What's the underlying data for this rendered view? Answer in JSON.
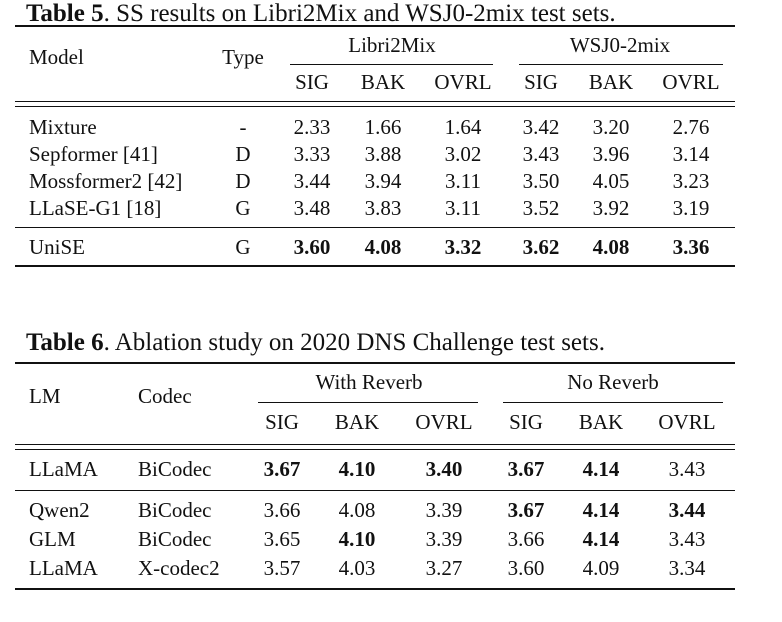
{
  "table5": {
    "label": "Table 5",
    "caption": ". SS results on Libri2Mix and WSJ0-2mix test sets.",
    "headers": {
      "model": "Model",
      "type": "Type",
      "group1": "Libri2Mix",
      "group2": "WSJ0-2mix",
      "metrics": [
        "SIG",
        "BAK",
        "OVRL",
        "SIG",
        "BAK",
        "OVRL"
      ]
    },
    "rows": [
      {
        "model": "Mixture",
        "type": "-",
        "values": [
          "2.33",
          "1.66",
          "1.64",
          "3.42",
          "3.20",
          "2.76"
        ]
      },
      {
        "model": "Sepformer [41]",
        "type": "D",
        "values": [
          "3.33",
          "3.88",
          "3.02",
          "3.43",
          "3.96",
          "3.14"
        ]
      },
      {
        "model": "Mossformer2 [42]",
        "type": "D",
        "values": [
          "3.44",
          "3.94",
          "3.11",
          "3.50",
          "4.05",
          "3.23"
        ]
      },
      {
        "model": "LLaSE-G1 [18]",
        "type": "G",
        "values": [
          "3.48",
          "3.83",
          "3.11",
          "3.52",
          "3.92",
          "3.19"
        ]
      },
      {
        "model": "UniSE",
        "type": "G",
        "values": [
          "3.60",
          "4.08",
          "3.32",
          "3.62",
          "4.08",
          "3.36"
        ]
      }
    ]
  },
  "table6": {
    "label": "Table 6",
    "caption": ". Ablation study on 2020 DNS Challenge test sets.",
    "headers": {
      "lm": "LM",
      "codec": "Codec",
      "group1": "With Reverb",
      "group2": "No Reverb",
      "metrics": [
        "SIG",
        "BAK",
        "OVRL",
        "SIG",
        "BAK",
        "OVRL"
      ]
    },
    "rows": [
      {
        "lm": "LLaMA",
        "codec": "BiCodec",
        "values": [
          "3.67",
          "4.10",
          "3.40",
          "3.67",
          "4.14",
          "3.43"
        ]
      },
      {
        "lm": "Qwen2",
        "codec": "BiCodec",
        "values": [
          "3.66",
          "4.08",
          "3.39",
          "3.67",
          "4.14",
          "3.44"
        ]
      },
      {
        "lm": "GLM",
        "codec": "BiCodec",
        "values": [
          "3.65",
          "4.10",
          "3.39",
          "3.66",
          "4.14",
          "3.43"
        ]
      },
      {
        "lm": "LLaMA",
        "codec": "X-codec2",
        "values": [
          "3.57",
          "4.03",
          "3.27",
          "3.60",
          "4.09",
          "3.34"
        ]
      }
    ]
  }
}
